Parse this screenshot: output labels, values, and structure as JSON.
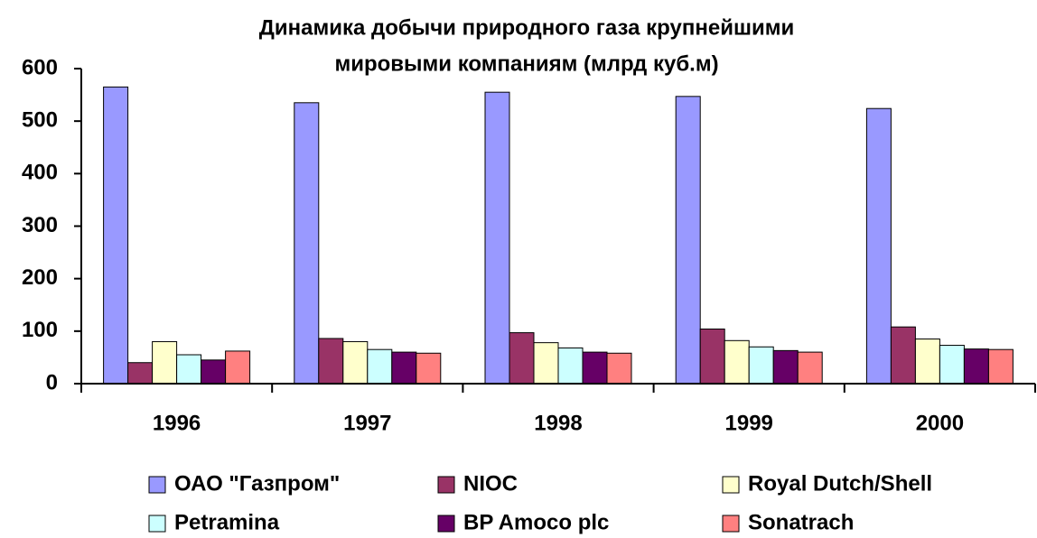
{
  "chart_data": {
    "type": "bar",
    "title": [
      "Динамика добычи природного газа крупнейшими",
      "мировыми компаниям (млрд куб.м)"
    ],
    "categories": [
      "1996",
      "1997",
      "1998",
      "1999",
      "2000"
    ],
    "series": [
      {
        "name": "ОАО \"Газпром\"",
        "color": "#9999ff",
        "values": [
          565,
          535,
          555,
          547,
          524
        ]
      },
      {
        "name": "NIOC",
        "color": "#993366",
        "values": [
          40,
          86,
          97,
          104,
          108
        ]
      },
      {
        "name": "Royal Dutch/Shell",
        "color": "#ffffcc",
        "values": [
          80,
          80,
          78,
          82,
          85
        ]
      },
      {
        "name": "Petramina",
        "color": "#ccffff",
        "values": [
          55,
          65,
          68,
          70,
          73
        ]
      },
      {
        "name": "BP Amoco plc",
        "color": "#660066",
        "values": [
          45,
          60,
          60,
          63,
          66
        ]
      },
      {
        "name": "Sonatrach",
        "color": "#ff8080",
        "values": [
          62,
          58,
          58,
          60,
          65
        ]
      }
    ],
    "ylim": [
      0,
      600
    ],
    "yticks": [
      0,
      100,
      200,
      300,
      400,
      500,
      600
    ],
    "grid": false
  }
}
